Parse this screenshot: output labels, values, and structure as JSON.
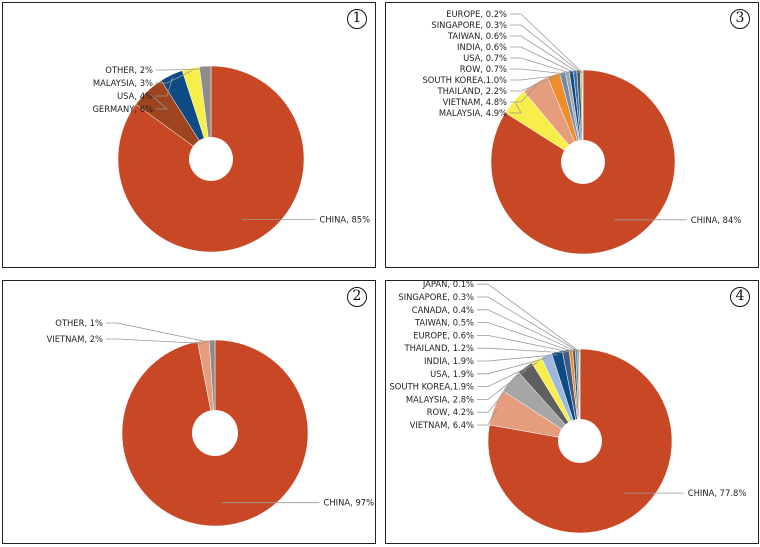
{
  "chart_data": [
    {
      "type": "pie",
      "panel_number": "1",
      "slices": [
        {
          "label": "CHINA, 85%",
          "value": 85,
          "color": "#C84826"
        },
        {
          "label": "GERMANY, 6%",
          "value": 6,
          "color": "#9E4520"
        },
        {
          "label": "USA, 4%",
          "value": 4,
          "color": "#0E4A84"
        },
        {
          "label": "MALAYSIA, 3%",
          "value": 3,
          "color": "#F8EE4B"
        },
        {
          "label": "OTHER, 2%",
          "value": 2,
          "color": "#8C8C8C"
        }
      ]
    },
    {
      "type": "pie",
      "panel_number": "3",
      "slices": [
        {
          "label": "CHINA, 84%",
          "value": 84,
          "color": "#C84826"
        },
        {
          "label": "MALAYSIA, 4.9%",
          "value": 4.9,
          "color": "#F8EE4B"
        },
        {
          "label": "VIETNAM, 4.8%",
          "value": 4.8,
          "color": "#E59D7D"
        },
        {
          "label": "THAILAND, 2.2%",
          "value": 2.2,
          "color": "#EF8C2C"
        },
        {
          "label": "SOUTH KOREA,1.0%",
          "value": 1.0,
          "color": "#6D8CB0"
        },
        {
          "label": "ROW, 0.7%",
          "value": 0.7,
          "color": "#A6A6A6"
        },
        {
          "label": "USA, 0.7%",
          "value": 0.7,
          "color": "#0E4A84"
        },
        {
          "label": "INDIA, 0.6%",
          "value": 0.6,
          "color": "#2E6DB8"
        },
        {
          "label": "TAIWAN, 0.6%",
          "value": 0.6,
          "color": "#535353"
        },
        {
          "label": "SINGAPORE, 0.3%",
          "value": 0.3,
          "color": "#8DB05A"
        },
        {
          "label": "EUROPE, 0.2%",
          "value": 0.2,
          "color": "#B8CCE4"
        }
      ]
    },
    {
      "type": "pie",
      "panel_number": "2",
      "slices": [
        {
          "label": "CHINA, 97%",
          "value": 97,
          "color": "#C84826"
        },
        {
          "label": "VIETNAM, 2%",
          "value": 2,
          "color": "#E59D7D"
        },
        {
          "label": "OTHER, 1%",
          "value": 1,
          "color": "#8C8C8C"
        }
      ]
    },
    {
      "type": "pie",
      "panel_number": "4",
      "slices": [
        {
          "label": "CHINA, 77.8%",
          "value": 77.8,
          "color": "#C84826"
        },
        {
          "label": "VIETNAM, 6.4%",
          "value": 6.4,
          "color": "#E59D7D"
        },
        {
          "label": "ROW, 4.2%",
          "value": 4.2,
          "color": "#A6A6A6"
        },
        {
          "label": "MALAYSIA, 2.8%",
          "value": 2.8,
          "color": "#5F5F5F"
        },
        {
          "label": "SOUTH KOREA,1.9%",
          "value": 1.9,
          "color": "#F8EE4B"
        },
        {
          "label": "USA, 1.9%",
          "value": 1.9,
          "color": "#9DB8DB"
        },
        {
          "label": "INDIA, 1.9%",
          "value": 1.9,
          "color": "#0E4A84"
        },
        {
          "label": "THAILAND, 1.2%",
          "value": 1.2,
          "color": "#3D5B83"
        },
        {
          "label": "EUROPE, 0.6%",
          "value": 0.6,
          "color": "#EF8C2C"
        },
        {
          "label": "TAIWAN, 0.5%",
          "value": 0.5,
          "color": "#535353"
        },
        {
          "label": "CANADA, 0.4%",
          "value": 0.4,
          "color": "#5B87C5"
        },
        {
          "label": "SINGAPORE, 0.3%",
          "value": 0.3,
          "color": "#8DB05A"
        },
        {
          "label": "JAPAN, 0.1%",
          "value": 0.1,
          "color": "#B8CCE4"
        }
      ]
    }
  ]
}
